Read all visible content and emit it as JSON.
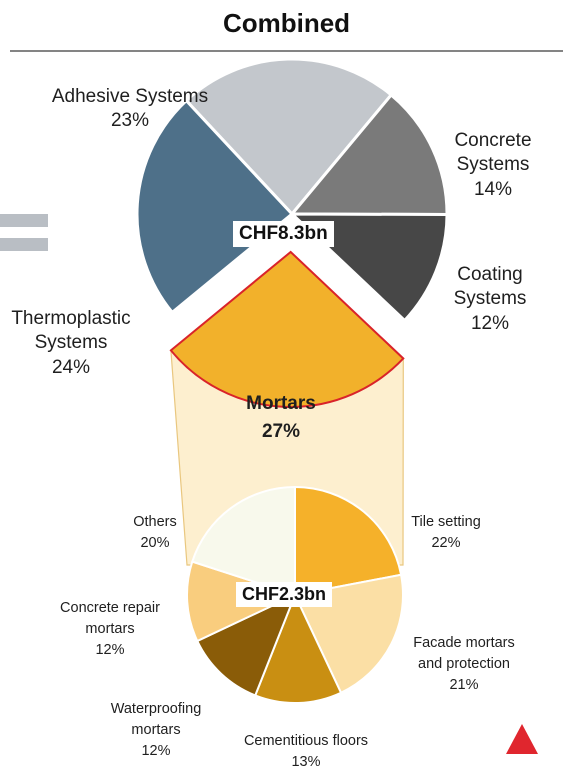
{
  "title": "Combined",
  "chart_data": [
    {
      "type": "pie",
      "center_label": "CHF8.3bn",
      "slices": [
        {
          "label": "Adhesive Systems",
          "pct_text": "23%",
          "value": 23,
          "color": "#c3c7cc"
        },
        {
          "label": "Concrete Systems",
          "pct_text": "14%",
          "value": 14,
          "color": "#7a7a7a"
        },
        {
          "label": "Coating Systems",
          "pct_text": "12%",
          "value": 12,
          "color": "#474747"
        },
        {
          "label": "Mortars",
          "pct_text": "27%",
          "value": 27,
          "color": "#f2b12b",
          "exploded": true
        },
        {
          "label": "Thermoplastic Systems",
          "pct_text": "24%",
          "value": 24,
          "color": "#4e7089"
        }
      ]
    },
    {
      "type": "pie",
      "center_label": "CHF2.3bn",
      "slices": [
        {
          "label": "Tile setting",
          "pct_text": "22%",
          "value": 22,
          "color": "#f5b12a"
        },
        {
          "label": "Facade mortars and protection",
          "pct_text": "21%",
          "value": 21,
          "color": "#fbdfa5"
        },
        {
          "label": "Cementitious floors",
          "pct_text": "13%",
          "value": 13,
          "color": "#c98f12"
        },
        {
          "label": "Waterproofing mortars",
          "pct_text": "12%",
          "value": 12,
          "color": "#8a5c08"
        },
        {
          "label": "Concrete repair mortars",
          "pct_text": "12%",
          "value": 12,
          "color": "#f9cd7e"
        },
        {
          "label": "Others",
          "pct_text": "20%",
          "value": 20,
          "color": "#f8f9ec"
        }
      ]
    }
  ]
}
